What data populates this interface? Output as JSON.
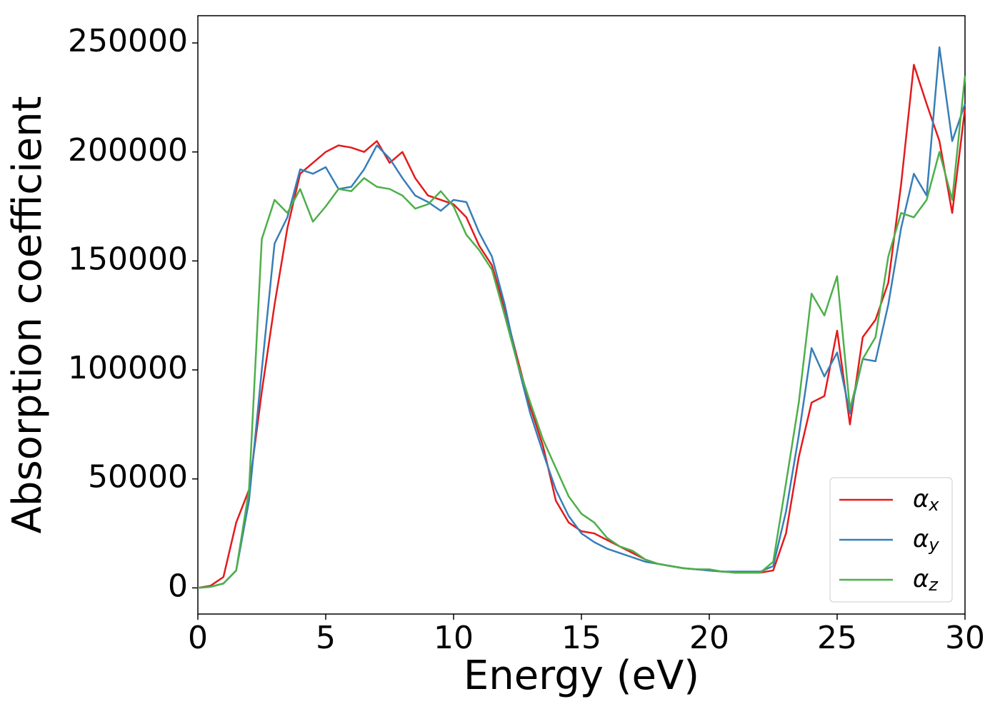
{
  "chart_data": {
    "type": "line",
    "xlabel": "Energy (eV)",
    "ylabel": "Absorption coefficient",
    "x": [
      0,
      0.5,
      1,
      1.5,
      2,
      2.5,
      3,
      3.5,
      4,
      4.5,
      5,
      5.5,
      6,
      6.5,
      7,
      7.5,
      8,
      8.5,
      9,
      9.5,
      10,
      10.5,
      11,
      11.5,
      12,
      12.5,
      13,
      13.5,
      14,
      14.5,
      15,
      15.5,
      16,
      16.5,
      17,
      17.5,
      18,
      18.5,
      19,
      19.5,
      20,
      20.5,
      21,
      21.5,
      22,
      22.5,
      23,
      23.5,
      24,
      24.5,
      25,
      25.5,
      26,
      26.5,
      27,
      27.5,
      28,
      28.5,
      29,
      29.5,
      30
    ],
    "series": [
      {
        "name": "αx",
        "color": "#e41a1c",
        "values": [
          0,
          1000,
          5000,
          30000,
          45000,
          90000,
          130000,
          165000,
          190000,
          195000,
          200000,
          203000,
          202000,
          200000,
          205000,
          195000,
          200000,
          188000,
          180000,
          178000,
          176000,
          170000,
          157000,
          148000,
          128000,
          105000,
          83000,
          65000,
          40000,
          30000,
          26000,
          25000,
          22000,
          19000,
          16000,
          13000,
          11000,
          10000,
          9000,
          8500,
          8000,
          7500,
          7000,
          7000,
          7000,
          8000,
          25000,
          60000,
          85000,
          88000,
          118000,
          75000,
          115000,
          123000,
          140000,
          185000,
          240000,
          222000,
          205000,
          172000,
          220000
        ]
      },
      {
        "name": "αy",
        "color": "#377eb8",
        "values": [
          0,
          500,
          2000,
          8000,
          40000,
          100000,
          158000,
          170000,
          192000,
          190000,
          193000,
          183000,
          184000,
          192000,
          203000,
          197000,
          188000,
          180000,
          177000,
          173000,
          178000,
          177000,
          163000,
          152000,
          130000,
          103000,
          80000,
          62000,
          45000,
          33000,
          25000,
          21000,
          18000,
          16000,
          14000,
          12000,
          11000,
          10000,
          9000,
          8500,
          8000,
          7500,
          7500,
          7500,
          7500,
          10000,
          35000,
          70000,
          110000,
          97000,
          108000,
          80000,
          105000,
          104000,
          130000,
          165000,
          190000,
          180000,
          248000,
          205000,
          222000
        ]
      },
      {
        "name": "αz",
        "color": "#4daf4a",
        "values": [
          0,
          500,
          2000,
          8000,
          45000,
          160000,
          178000,
          172000,
          183000,
          168000,
          175000,
          183000,
          182000,
          188000,
          184000,
          183000,
          180000,
          174000,
          176000,
          182000,
          175000,
          162000,
          155000,
          146000,
          125000,
          103000,
          85000,
          68000,
          55000,
          42000,
          34000,
          30000,
          23000,
          19000,
          17000,
          13000,
          11000,
          10000,
          9000,
          8500,
          8500,
          7500,
          7000,
          7000,
          7000,
          12000,
          48000,
          85000,
          135000,
          125000,
          143000,
          82000,
          105000,
          115000,
          152000,
          172000,
          170000,
          178000,
          200000,
          178000,
          235000
        ]
      }
    ],
    "xlim": [
      0,
      30
    ],
    "xticks": [
      0,
      5,
      10,
      15,
      20,
      25,
      30
    ],
    "ylim": [
      -12000,
      262500
    ],
    "yticks": [
      0,
      50000,
      100000,
      150000,
      200000,
      250000
    ],
    "legend": "lower right"
  }
}
